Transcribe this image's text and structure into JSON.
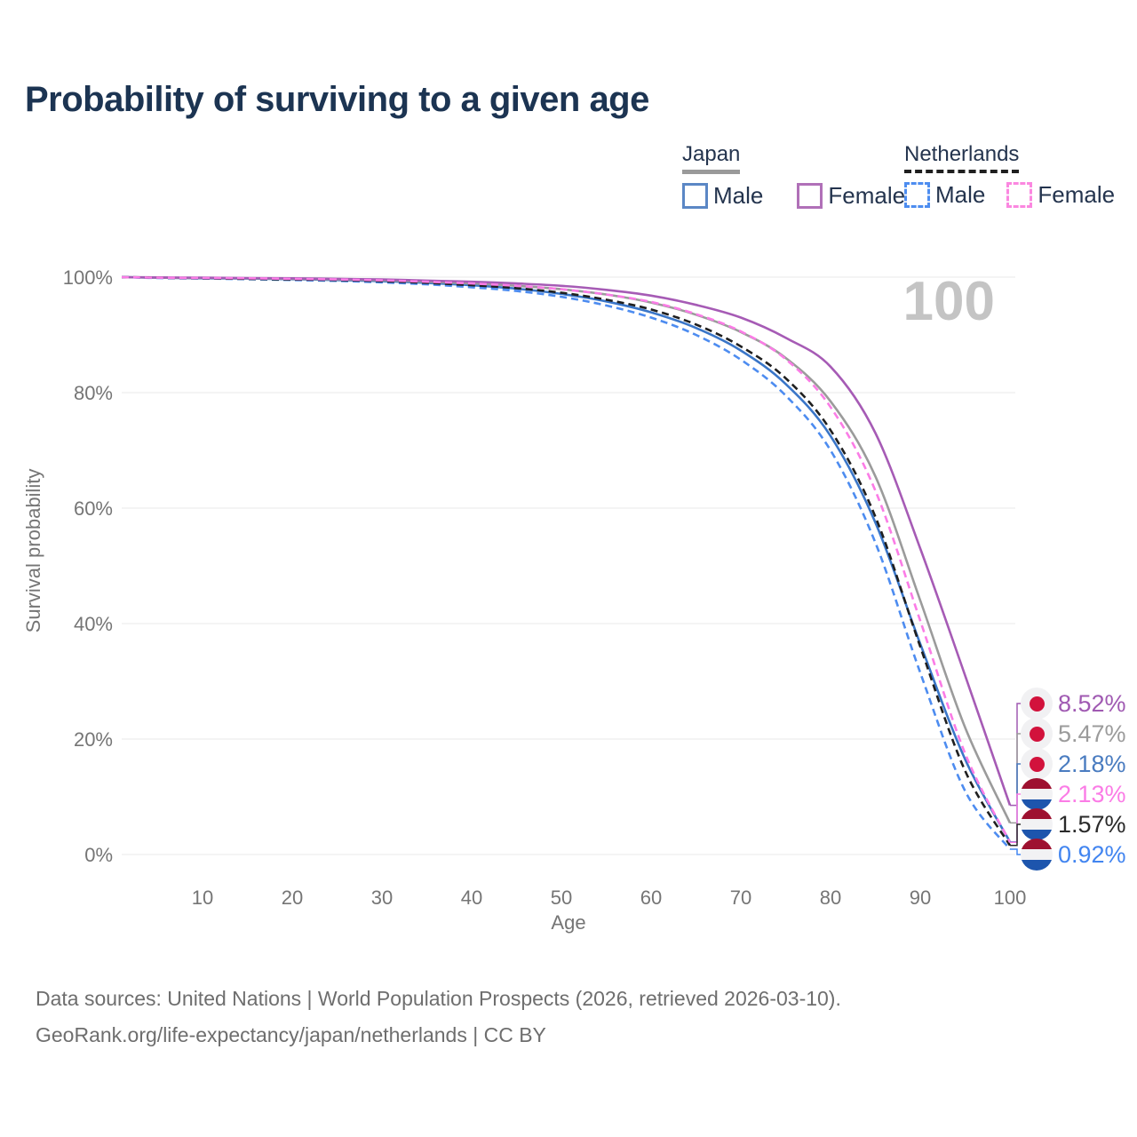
{
  "title": "Probability of surviving to a given age",
  "watermark": "100",
  "legend": {
    "groups": [
      {
        "label": "Japan",
        "line_style": "solid",
        "underline_color": "#9a9a9a",
        "items": [
          {
            "label": "Male",
            "color": "#5b87c5"
          },
          {
            "label": "Female",
            "color": "#b070b8"
          }
        ]
      },
      {
        "label": "Netherlands",
        "line_style": "dashed",
        "underline_color": "#1f1f1f",
        "items": [
          {
            "label": "Male",
            "color": "#4d8df0"
          },
          {
            "label": "Female",
            "color": "#fb87e0"
          }
        ]
      }
    ]
  },
  "flags": {
    "japan": {
      "bg": "#f1f1f3",
      "dot": "#d2123c"
    },
    "netherlands": {
      "top": "#9e1130",
      "middle": "#f2f2f4",
      "bottom": "#1d55ad"
    }
  },
  "chart_data": {
    "type": "line",
    "title": "Probability of surviving to a given age",
    "xlabel": "Age",
    "ylabel": "Survival probability",
    "xlim": [
      0,
      100
    ],
    "ylim": [
      0,
      100
    ],
    "grid": true,
    "grid_color": "#e9e9e9",
    "axis_text_color": "#757575",
    "x_ticks": [
      10,
      20,
      30,
      40,
      50,
      60,
      70,
      80,
      90,
      100
    ],
    "y_ticks": [
      {
        "value": 0,
        "label": "0%"
      },
      {
        "value": 20,
        "label": "20%"
      },
      {
        "value": 40,
        "label": "40%"
      },
      {
        "value": 60,
        "label": "60%"
      },
      {
        "value": 80,
        "label": "80%"
      },
      {
        "value": 100,
        "label": "100%"
      }
    ],
    "ages": [
      0,
      5,
      10,
      15,
      20,
      25,
      30,
      35,
      40,
      45,
      50,
      55,
      60,
      65,
      70,
      75,
      80,
      85,
      90,
      95,
      100
    ],
    "series": [
      {
        "id": "japan-female",
        "country": "Japan",
        "sex": "Female",
        "flag": "japan",
        "dash": "solid",
        "color": "#a65bb5",
        "label_color": "#a05ab2",
        "end_label": "8.52%",
        "values": [
          100,
          99.95,
          99.9,
          99.85,
          99.8,
          99.7,
          99.6,
          99.4,
          99.2,
          98.9,
          98.5,
          97.8,
          96.8,
          95.2,
          93.0,
          89.5,
          84.5,
          73.0,
          53.0,
          31.0,
          8.52
        ]
      },
      {
        "id": "japan-all",
        "country": "Japan",
        "sex": "All",
        "flag": "japan",
        "dash": "solid",
        "color": "#9b9b9b",
        "label_color": "#9b9b9b",
        "end_label": "5.47%",
        "values": [
          100,
          99.9,
          99.85,
          99.8,
          99.7,
          99.6,
          99.45,
          99.2,
          98.9,
          98.5,
          97.9,
          97.0,
          95.6,
          93.5,
          90.5,
          86.0,
          78.5,
          65.5,
          44.0,
          22.0,
          5.47
        ]
      },
      {
        "id": "japan-male",
        "country": "Japan",
        "sex": "Male",
        "flag": "japan",
        "dash": "solid",
        "color": "#3a76c8",
        "label_color": "#4a7cc0",
        "end_label": "2.18%",
        "values": [
          100,
          99.9,
          99.8,
          99.75,
          99.65,
          99.5,
          99.3,
          99.0,
          98.6,
          98.0,
          97.1,
          95.8,
          93.9,
          91.2,
          87.3,
          81.5,
          72.5,
          57.5,
          36.5,
          16.5,
          2.18
        ]
      },
      {
        "id": "netherlands-female",
        "country": "Netherlands",
        "sex": "Female",
        "flag": "netherlands",
        "dash": "dashed",
        "color": "#fb7ce6",
        "label_color": "#fb7ce6",
        "end_label": "2.13%",
        "values": [
          100,
          99.9,
          99.85,
          99.8,
          99.7,
          99.6,
          99.45,
          99.2,
          98.9,
          98.5,
          97.9,
          97.0,
          95.7,
          93.6,
          90.6,
          85.8,
          77.5,
          63.0,
          40.5,
          17.5,
          2.13
        ]
      },
      {
        "id": "netherlands-all",
        "country": "Netherlands",
        "sex": "All",
        "flag": "netherlands",
        "dash": "dashed",
        "color": "#1f1f1f",
        "label_color": "#2a2a2a",
        "end_label": "1.57%",
        "values": [
          100,
          99.9,
          99.8,
          99.7,
          99.6,
          99.5,
          99.3,
          99.0,
          98.6,
          98.1,
          97.3,
          96.1,
          94.4,
          91.8,
          88.0,
          82.5,
          73.5,
          58.5,
          36.0,
          14.5,
          1.57
        ]
      },
      {
        "id": "netherlands-male",
        "country": "Netherlands",
        "sex": "Male",
        "flag": "netherlands",
        "dash": "dashed",
        "color": "#4d8cf0",
        "label_color": "#4285f0",
        "end_label": "0.92%",
        "values": [
          100,
          99.85,
          99.75,
          99.65,
          99.5,
          99.35,
          99.1,
          98.75,
          98.25,
          97.6,
          96.6,
          95.1,
          93.0,
          90.0,
          85.7,
          79.5,
          70.0,
          54.0,
          31.5,
          11.0,
          0.92
        ]
      }
    ],
    "legend_position": "top-right",
    "watermark": "100"
  },
  "footer": {
    "line1": "Data sources: United Nations | World Population Prospects (2026, retrieved 2026-03-10).",
    "line2": "GeoRank.org/life-expectancy/japan/netherlands | CC BY"
  }
}
